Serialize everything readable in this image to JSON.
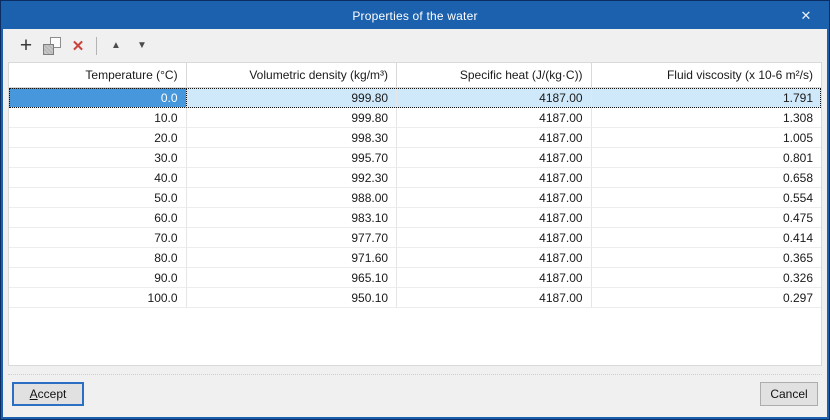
{
  "window": {
    "title": "Properties of the water",
    "close_glyph": "✕"
  },
  "toolbar": {
    "add_glyph": "+",
    "delete_glyph": "✕",
    "move_up_glyph": "▲",
    "move_down_glyph": "▼"
  },
  "table": {
    "columns": [
      "Temperature (°C)",
      "Volumetric density (kg/m³)",
      "Specific heat (J/(kg·C))",
      "Fluid viscosity (x 10-6 m²/s)"
    ],
    "rows": [
      [
        "0.0",
        "999.80",
        "4187.00",
        "1.791"
      ],
      [
        "10.0",
        "999.80",
        "4187.00",
        "1.308"
      ],
      [
        "20.0",
        "998.30",
        "4187.00",
        "1.005"
      ],
      [
        "30.0",
        "995.70",
        "4187.00",
        "0.801"
      ],
      [
        "40.0",
        "992.30",
        "4187.00",
        "0.658"
      ],
      [
        "50.0",
        "988.00",
        "4187.00",
        "0.554"
      ],
      [
        "60.0",
        "983.10",
        "4187.00",
        "0.475"
      ],
      [
        "70.0",
        "977.70",
        "4187.00",
        "0.414"
      ],
      [
        "80.0",
        "971.60",
        "4187.00",
        "0.365"
      ],
      [
        "90.0",
        "965.10",
        "4187.00",
        "0.326"
      ],
      [
        "100.0",
        "950.10",
        "4187.00",
        "0.297"
      ]
    ],
    "selected_row": 0,
    "selected_col": 0
  },
  "buttons": {
    "accept_mnemonic": "A",
    "accept_rest": "ccept",
    "cancel": "Cancel"
  },
  "colors": {
    "titlebar": "#1b61ae",
    "selection_cell": "#4697db",
    "selection_row": "#cfe8fa",
    "delete_red": "#c8443c",
    "accept_focus_border": "#2b6fc4"
  }
}
